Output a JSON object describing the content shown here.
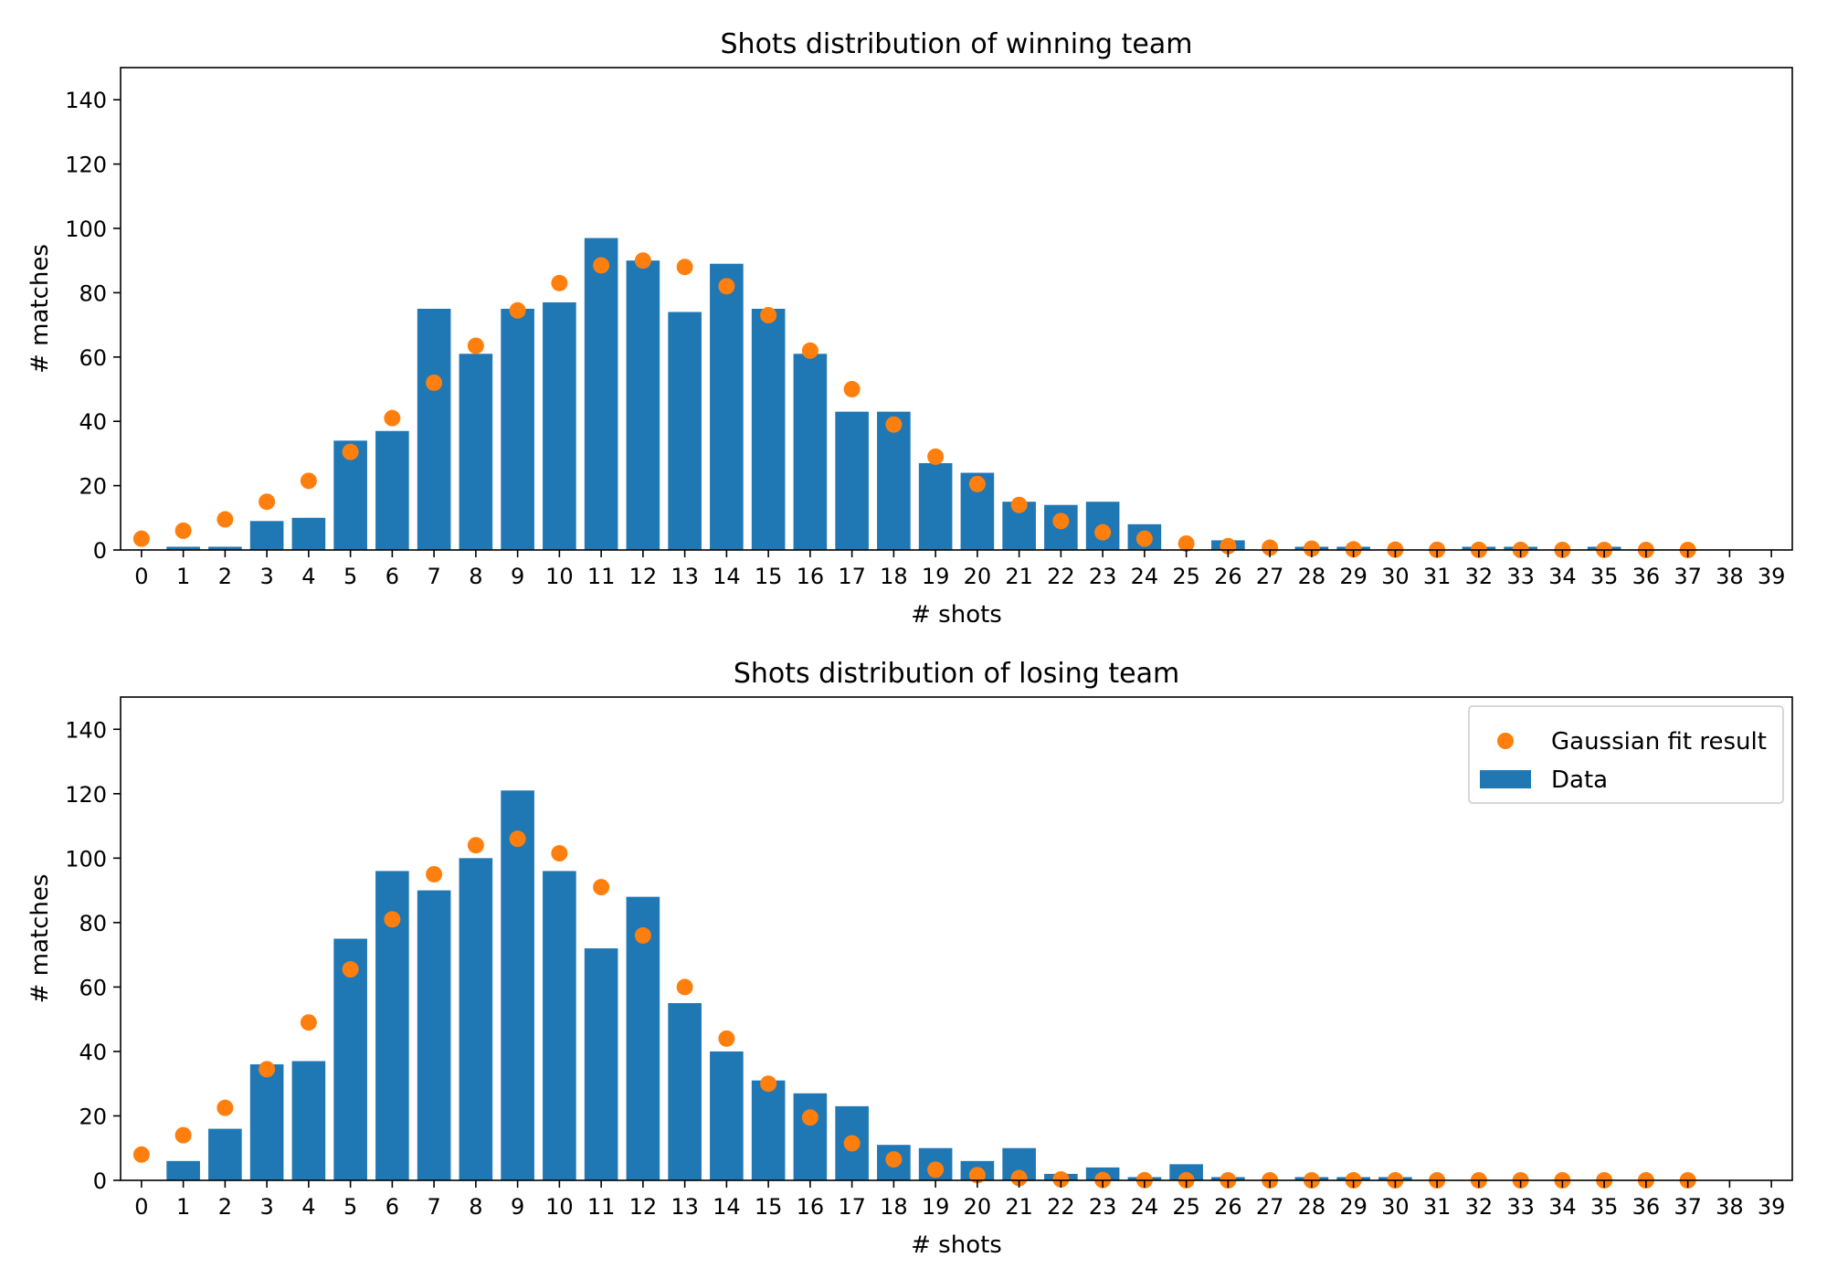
{
  "chart_data": [
    {
      "type": "bar",
      "title": "Shots distribution of winning team",
      "xlabel": "# shots",
      "ylabel": "# matches",
      "x": [
        0,
        1,
        2,
        3,
        4,
        5,
        6,
        7,
        8,
        9,
        10,
        11,
        12,
        13,
        14,
        15,
        16,
        17,
        18,
        19,
        20,
        21,
        22,
        23,
        24,
        25,
        26,
        27,
        28,
        29,
        30,
        31,
        32,
        33,
        34,
        35,
        36,
        37,
        38,
        39
      ],
      "xlim": [
        -0.5,
        39.5
      ],
      "ylim": [
        0,
        150
      ],
      "yticks": [
        0,
        20,
        40,
        60,
        80,
        100,
        120,
        140
      ],
      "grid": false,
      "legend": null,
      "series": [
        {
          "name": "Data",
          "type": "bar",
          "color": "#1f77b4",
          "values": [
            0,
            1,
            1,
            9,
            10,
            34,
            37,
            75,
            61,
            75,
            77,
            97,
            90,
            74,
            89,
            75,
            61,
            43,
            43,
            27,
            24,
            15,
            14,
            15,
            8,
            0,
            3,
            0,
            1,
            1,
            0,
            0,
            1,
            1,
            0,
            1,
            0,
            0,
            0,
            0
          ]
        },
        {
          "name": "Gaussian fit result",
          "type": "scatter",
          "color": "#ff7f0e",
          "x": [
            0,
            1,
            2,
            3,
            4,
            5,
            6,
            7,
            8,
            9,
            10,
            11,
            12,
            13,
            14,
            15,
            16,
            17,
            18,
            19,
            20,
            21,
            22,
            23,
            24,
            25,
            26,
            27,
            28,
            29,
            30,
            31,
            32,
            33,
            34,
            35,
            36,
            37
          ],
          "values": [
            3.5,
            6,
            9.5,
            15,
            21.5,
            30.5,
            41,
            52,
            63.5,
            74.5,
            83,
            88.5,
            90,
            88,
            82,
            73,
            62,
            50,
            39,
            29,
            20.5,
            14,
            9,
            5.5,
            3.5,
            2,
            1.2,
            0.7,
            0.4,
            0.2,
            0.1,
            0.05,
            0.03,
            0.02,
            0.01,
            0.01,
            0,
            0
          ]
        }
      ]
    },
    {
      "type": "bar",
      "title": "Shots distribution of losing team",
      "xlabel": "# shots",
      "ylabel": "# matches",
      "x": [
        0,
        1,
        2,
        3,
        4,
        5,
        6,
        7,
        8,
        9,
        10,
        11,
        12,
        13,
        14,
        15,
        16,
        17,
        18,
        19,
        20,
        21,
        22,
        23,
        24,
        25,
        26,
        27,
        28,
        29,
        30,
        31,
        32,
        33,
        34,
        35,
        36,
        37,
        38,
        39
      ],
      "xlim": [
        -0.5,
        39.5
      ],
      "ylim": [
        0,
        150
      ],
      "yticks": [
        0,
        20,
        40,
        60,
        80,
        100,
        120,
        140
      ],
      "grid": false,
      "legend": "top-right",
      "legend_entries": [
        "Gaussian fit result",
        "Data"
      ],
      "series": [
        {
          "name": "Data",
          "type": "bar",
          "color": "#1f77b4",
          "values": [
            0,
            6,
            16,
            36,
            37,
            75,
            96,
            90,
            100,
            121,
            96,
            72,
            88,
            55,
            40,
            31,
            27,
            23,
            11,
            10,
            6,
            10,
            2,
            4,
            1,
            5,
            1,
            0,
            1,
            1,
            1,
            0,
            0,
            0,
            0,
            0,
            0,
            0,
            0,
            0
          ]
        },
        {
          "name": "Gaussian fit result",
          "type": "scatter",
          "color": "#ff7f0e",
          "x": [
            0,
            1,
            2,
            3,
            4,
            5,
            6,
            7,
            8,
            9,
            10,
            11,
            12,
            13,
            14,
            15,
            16,
            17,
            18,
            19,
            20,
            21,
            22,
            23,
            24,
            25,
            26,
            27,
            28,
            29,
            30,
            31,
            32,
            33,
            34,
            35,
            36,
            37
          ],
          "values": [
            8,
            14,
            22.5,
            34.5,
            49,
            65.5,
            81,
            95,
            104,
            106,
            101.5,
            91,
            76,
            60,
            44,
            30,
            19.5,
            11.5,
            6.5,
            3.3,
            1.6,
            0.7,
            0.3,
            0.1,
            0.05,
            0.02,
            0,
            0,
            0,
            0,
            0,
            0,
            0,
            0,
            0,
            0,
            0,
            0
          ]
        }
      ]
    }
  ]
}
